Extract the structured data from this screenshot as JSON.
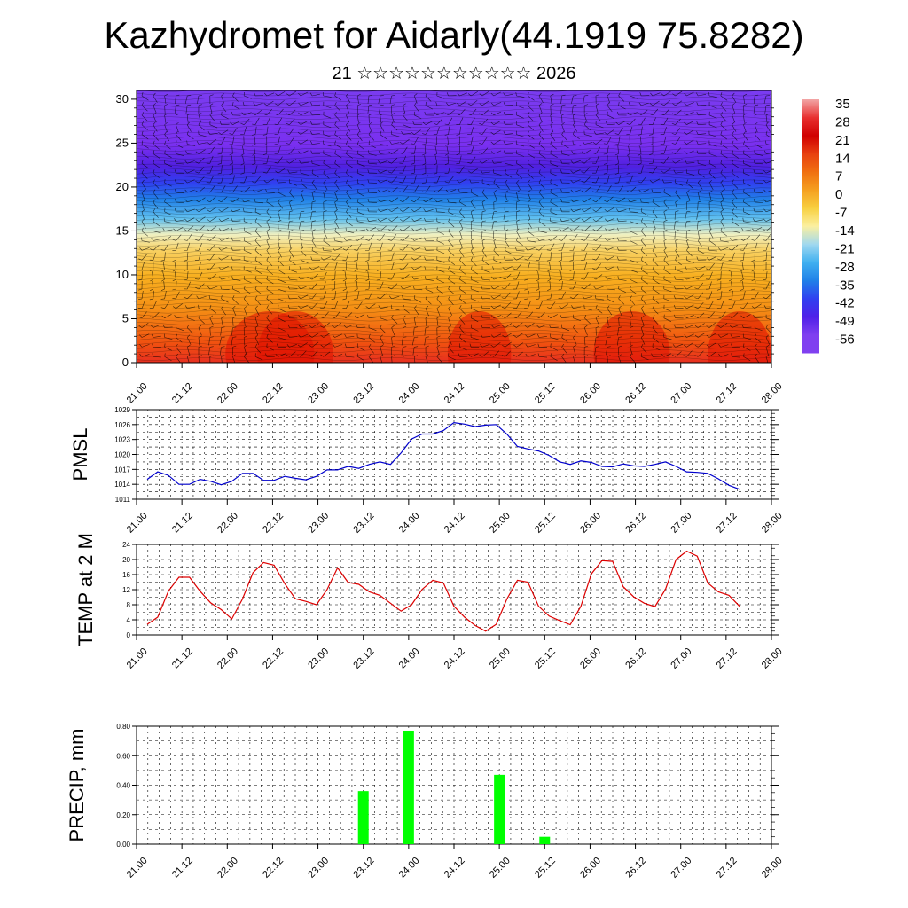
{
  "header": {
    "title": "Kazhydromet for Aidarly(44.1919 75.8282)",
    "subtitle": "21 ☆☆☆☆☆☆☆☆☆☆☆ 2026"
  },
  "chart_data": [
    {
      "type": "heatmap",
      "name": "temperature-wind-cross-section",
      "x_tick_labels": [
        "21.00",
        "21.12",
        "22.00",
        "22.12",
        "23.00",
        "23.12",
        "24.00",
        "24.12",
        "25.00",
        "25.12",
        "26.00",
        "26.12",
        "27.00",
        "27.12",
        "28.00"
      ],
      "y_ticks": [
        0,
        5,
        10,
        15,
        20,
        25,
        30
      ],
      "ylim": [
        0,
        31
      ],
      "colorbar": {
        "labels": [
          "35",
          "28",
          "21",
          "14",
          "7",
          "0",
          "-7",
          "-14",
          "-21",
          "-28",
          "-35",
          "-42",
          "-49",
          "-56"
        ],
        "colors": [
          "#f2a6a6",
          "#e83030",
          "#d00000",
          "#e84010",
          "#f07010",
          "#f5a020",
          "#f8d040",
          "#fbf0a0",
          "#a0d8f0",
          "#40b0f0",
          "#2080e8",
          "#3040f0",
          "#5020e8",
          "#8040f0"
        ]
      },
      "layers": [
        {
          "z": [
            0,
            3
          ],
          "value": 25
        },
        {
          "z": [
            3,
            9
          ],
          "value": 15
        },
        {
          "z": [
            9,
            13
          ],
          "value": 5
        },
        {
          "z": [
            13,
            15.5
          ],
          "value": -5
        },
        {
          "z": [
            15.5,
            18
          ],
          "value": -20
        },
        {
          "z": [
            18,
            21
          ],
          "value": -40
        },
        {
          "z": [
            21,
            24
          ],
          "value": -56
        },
        {
          "z": [
            24,
            31
          ],
          "value": -52
        }
      ]
    },
    {
      "type": "line",
      "name": "pmsl",
      "ylabel": "PMSL",
      "ylim": [
        1011,
        1029
      ],
      "y_ticks": [
        1011,
        1014,
        1017,
        1020,
        1023,
        1026,
        1029
      ],
      "x_tick_labels": [
        "21.00",
        "21.12",
        "22.00",
        "22.12",
        "23.00",
        "23.12",
        "24.00",
        "24.12",
        "25.00",
        "25.12",
        "26.00",
        "26.12",
        "27.00",
        "27.12",
        "28.00"
      ],
      "color": "#0000cc",
      "values": [
        1015,
        1016.5,
        1015.8,
        1014,
        1014,
        1015,
        1014.6,
        1013.9,
        1014.6,
        1016.2,
        1016.2,
        1014.8,
        1014.8,
        1015.6,
        1015.2,
        1014.9,
        1015.6,
        1016.9,
        1016.9,
        1017.6,
        1017.2,
        1018,
        1018.5,
        1018,
        1020.3,
        1023.1,
        1024.1,
        1024.1,
        1024.8,
        1026.4,
        1026.1,
        1025.6,
        1025.9,
        1026,
        1024.1,
        1021.6,
        1021.1,
        1020.7,
        1019.8,
        1018.5,
        1018,
        1018.7,
        1018.4,
        1017.6,
        1017.5,
        1018.1,
        1017.7,
        1017.6,
        1018,
        1018.5,
        1017.6,
        1016.5,
        1016.4,
        1016.2,
        1015.1,
        1013.8,
        1013
      ]
    },
    {
      "type": "line",
      "name": "temp-2m",
      "ylabel": "TEMP at 2 M",
      "ylim": [
        0,
        24
      ],
      "y_ticks": [
        0,
        4,
        8,
        12,
        16,
        20,
        24
      ],
      "x_tick_labels": [
        "21.00",
        "21.12",
        "22.00",
        "22.12",
        "23.00",
        "23.12",
        "24.00",
        "24.12",
        "25.00",
        "25.12",
        "26.00",
        "26.12",
        "27.00",
        "27.12",
        "28.00"
      ],
      "color": "#dd0000",
      "values": [
        2.8,
        4.7,
        11.6,
        15.3,
        15.3,
        11.6,
        8.5,
        6.7,
        4.2,
        9.5,
        16.5,
        19.2,
        18.5,
        13.6,
        9.6,
        8.9,
        8,
        12,
        17.8,
        13.9,
        13.4,
        11.4,
        10.5,
        8.4,
        6.3,
        8,
        12.1,
        14.5,
        13.8,
        7.6,
        4.7,
        2.5,
        1,
        2.8,
        9.5,
        14.5,
        14,
        7.6,
        5,
        3.8,
        2.7,
        7.6,
        16.2,
        19.7,
        19.5,
        12.8,
        10.1,
        8.4,
        7.5,
        12.1,
        20,
        22.2,
        20.9,
        13.8,
        11.4,
        10.5,
        7.6
      ]
    },
    {
      "type": "bar",
      "name": "precipitation",
      "ylabel": "PRECIP, mm",
      "ylim": [
        0,
        0.8
      ],
      "y_tick_labels": [
        "0.00",
        "0.20",
        "0.40",
        "0.60",
        "0.80"
      ],
      "x_tick_labels": [
        "21.00",
        "21.12",
        "22.00",
        "22.12",
        "23.00",
        "23.12",
        "24.00",
        "24.12",
        "25.00",
        "25.12",
        "26.00",
        "26.12",
        "27.00",
        "27.12",
        "28.00"
      ],
      "color": "#00ff00",
      "bars": [
        {
          "t": 23.5,
          "value": 0.36
        },
        {
          "t": 24.0,
          "value": 0.77
        },
        {
          "t": 25.0,
          "value": 0.47
        },
        {
          "t": 25.5,
          "value": 0.05
        }
      ]
    }
  ]
}
